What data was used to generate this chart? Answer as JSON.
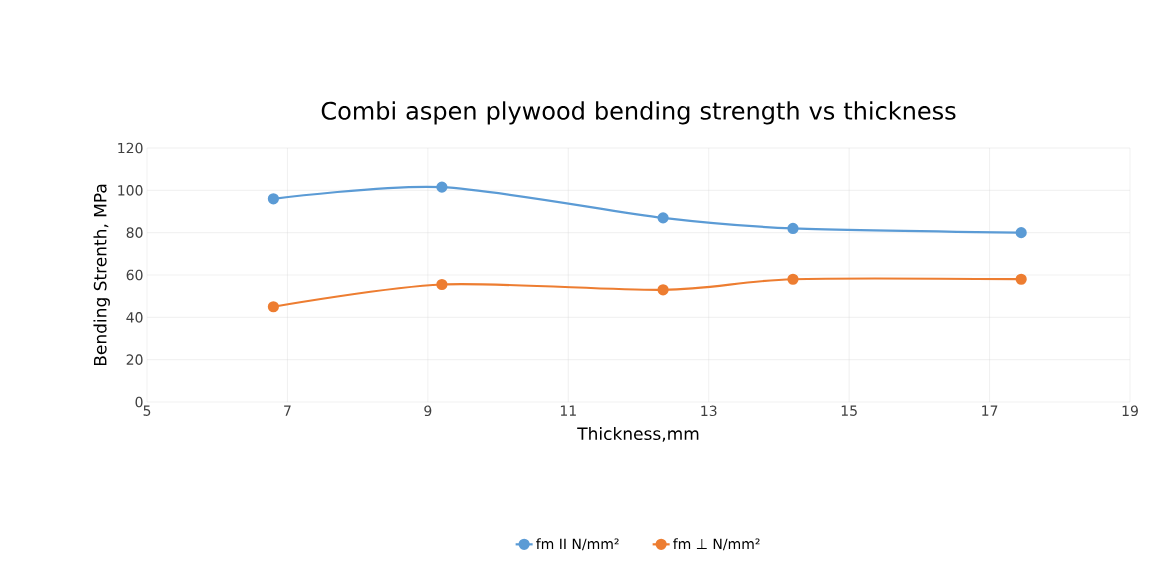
{
  "chart_data": {
    "type": "line",
    "title": "Combi aspen plywood bending strength vs thickness",
    "xlabel": "Thickness,mm",
    "ylabel": "Bending Strenth, MPa",
    "series": [
      {
        "name": "fm II N/mm²",
        "color": "#5b9bd5",
        "x": [
          6.8,
          9.2,
          12.35,
          14.2,
          17.45
        ],
        "values": [
          96,
          101.5,
          87,
          82,
          80
        ]
      },
      {
        "name": "fm ⊥ N/mm²",
        "color": "#ed7d31",
        "x": [
          6.8,
          9.2,
          12.35,
          14.2,
          17.45
        ],
        "values": [
          45,
          55.5,
          53,
          58,
          58
        ]
      }
    ],
    "xlim": [
      5,
      19
    ],
    "xticks": [
      5,
      7,
      9,
      11,
      13,
      15,
      17,
      19
    ],
    "ylim": [
      0,
      120
    ],
    "yticks": [
      0,
      20,
      40,
      60,
      80,
      100,
      120
    ],
    "grid": true,
    "legend": "bottom",
    "marker": "circle",
    "line_style": "solid"
  }
}
